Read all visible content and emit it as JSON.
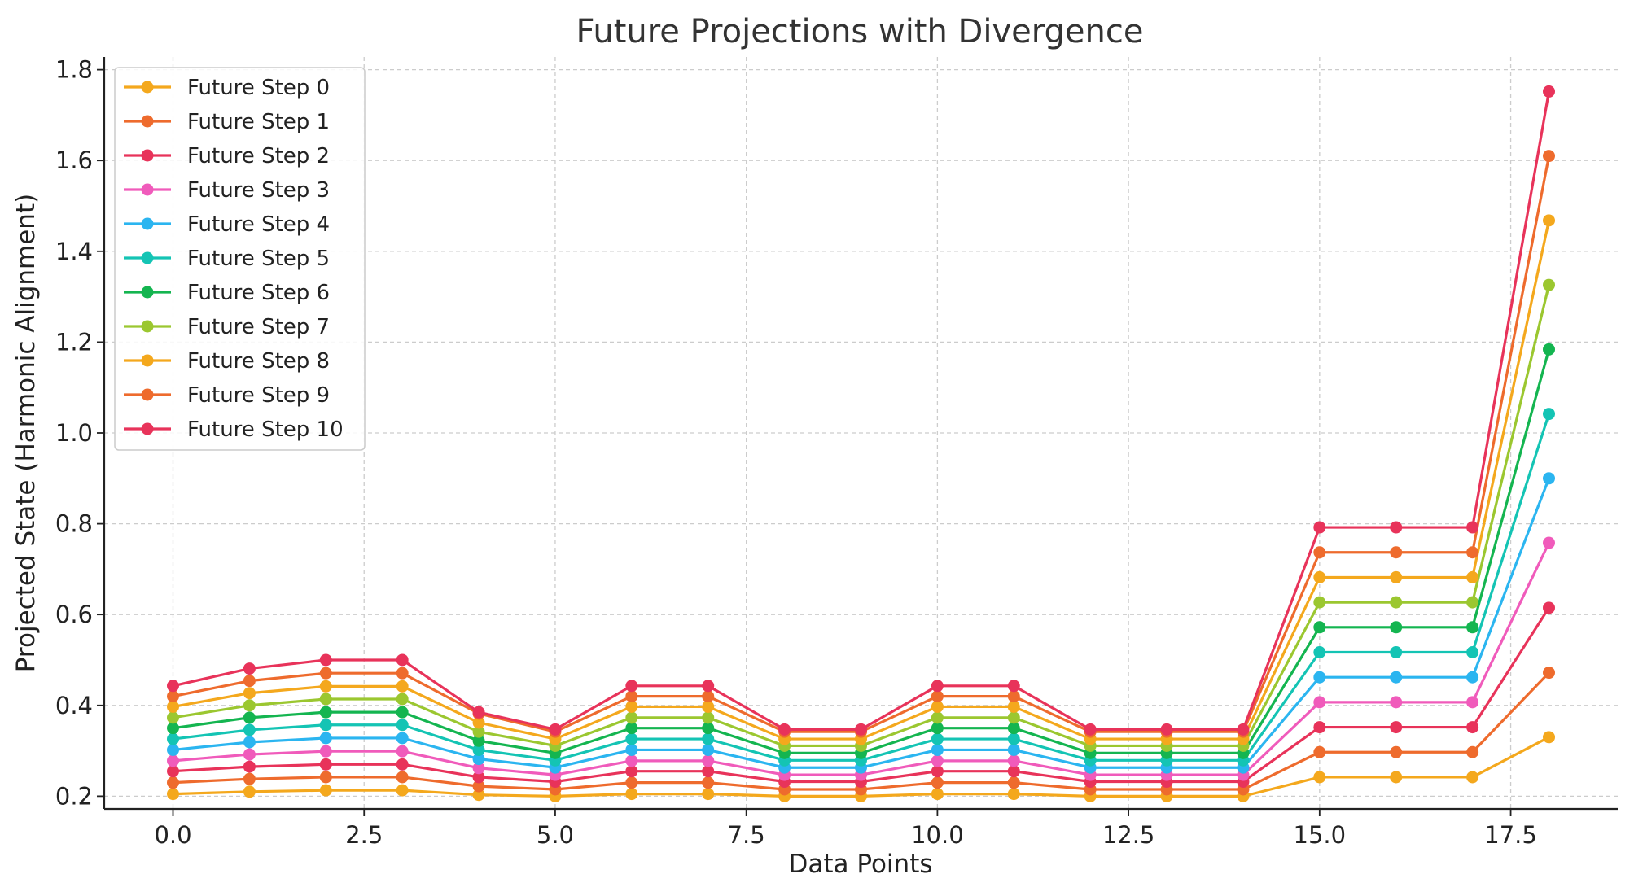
{
  "chart_data": {
    "type": "line",
    "title": "Future Projections with Divergence",
    "xlabel": "Data Points",
    "ylabel": "Projected State (Harmonic Alignment)",
    "xlim": [
      -0.9,
      18.9
    ],
    "ylim": [
      0.172,
      1.828
    ],
    "x_ticks": [
      0.0,
      2.5,
      5.0,
      7.5,
      10.0,
      12.5,
      15.0,
      17.5
    ],
    "x_tick_labels": [
      "0.0",
      "2.5",
      "5.0",
      "7.5",
      "10.0",
      "12.5",
      "15.0",
      "17.5"
    ],
    "y_ticks": [
      0.2,
      0.4,
      0.6,
      0.8,
      1.0,
      1.2,
      1.4,
      1.6,
      1.8
    ],
    "y_tick_labels": [
      "0.2",
      "0.4",
      "0.6",
      "0.8",
      "1.0",
      "1.2",
      "1.4",
      "1.6",
      "1.8"
    ],
    "grid": true,
    "legend_position": "top-left",
    "x": [
      0,
      1,
      2,
      3,
      4,
      5,
      6,
      7,
      8,
      9,
      10,
      11,
      12,
      13,
      14,
      15,
      16,
      17,
      18
    ],
    "series": [
      {
        "name": "Future Step 0",
        "color": "#f4a81d",
        "values": [
          0.205,
          0.21,
          0.213,
          0.213,
          0.203,
          0.2,
          0.205,
          0.205,
          0.2,
          0.2,
          0.205,
          0.205,
          0.2,
          0.2,
          0.2,
          0.242,
          0.242,
          0.242,
          0.33
        ]
      },
      {
        "name": "Future Step 1",
        "color": "#ee6b2d",
        "values": [
          0.23,
          0.238,
          0.242,
          0.242,
          0.222,
          0.215,
          0.23,
          0.23,
          0.215,
          0.215,
          0.23,
          0.23,
          0.215,
          0.215,
          0.215,
          0.297,
          0.297,
          0.297,
          0.472
        ]
      },
      {
        "name": "Future Step 2",
        "color": "#e8335a",
        "values": [
          0.255,
          0.265,
          0.27,
          0.27,
          0.242,
          0.232,
          0.255,
          0.255,
          0.232,
          0.232,
          0.255,
          0.255,
          0.232,
          0.232,
          0.232,
          0.352,
          0.352,
          0.352,
          0.615
        ]
      },
      {
        "name": "Future Step 3",
        "color": "#f05bbb",
        "values": [
          0.278,
          0.292,
          0.299,
          0.299,
          0.262,
          0.247,
          0.278,
          0.278,
          0.247,
          0.247,
          0.278,
          0.278,
          0.247,
          0.247,
          0.247,
          0.407,
          0.407,
          0.407,
          0.758
        ]
      },
      {
        "name": "Future Step 4",
        "color": "#2bb5f0",
        "values": [
          0.302,
          0.319,
          0.328,
          0.328,
          0.282,
          0.263,
          0.302,
          0.302,
          0.263,
          0.263,
          0.302,
          0.302,
          0.263,
          0.263,
          0.263,
          0.462,
          0.462,
          0.462,
          0.9
        ]
      },
      {
        "name": "Future Step 5",
        "color": "#14c4b4",
        "values": [
          0.326,
          0.346,
          0.357,
          0.357,
          0.302,
          0.279,
          0.326,
          0.326,
          0.279,
          0.279,
          0.326,
          0.326,
          0.279,
          0.279,
          0.279,
          0.517,
          0.517,
          0.517,
          1.042
        ]
      },
      {
        "name": "Future Step 6",
        "color": "#14b550",
        "values": [
          0.35,
          0.373,
          0.385,
          0.385,
          0.322,
          0.295,
          0.35,
          0.35,
          0.295,
          0.295,
          0.35,
          0.35,
          0.295,
          0.295,
          0.295,
          0.572,
          0.572,
          0.572,
          1.184
        ]
      },
      {
        "name": "Future Step 7",
        "color": "#9bc730",
        "values": [
          0.373,
          0.4,
          0.414,
          0.414,
          0.342,
          0.311,
          0.373,
          0.373,
          0.311,
          0.311,
          0.373,
          0.373,
          0.311,
          0.311,
          0.311,
          0.627,
          0.627,
          0.627,
          1.326
        ]
      },
      {
        "name": "Future Step 8",
        "color": "#f4a81d",
        "values": [
          0.397,
          0.427,
          0.442,
          0.442,
          0.362,
          0.326,
          0.397,
          0.397,
          0.326,
          0.326,
          0.397,
          0.397,
          0.326,
          0.326,
          0.326,
          0.682,
          0.682,
          0.682,
          1.468
        ]
      },
      {
        "name": "Future Step 9",
        "color": "#ee6b2d",
        "values": [
          0.42,
          0.454,
          0.471,
          0.471,
          0.382,
          0.342,
          0.42,
          0.42,
          0.342,
          0.342,
          0.42,
          0.42,
          0.342,
          0.342,
          0.342,
          0.737,
          0.737,
          0.737,
          1.61
        ]
      },
      {
        "name": "Future Step 10",
        "color": "#e8335a",
        "values": [
          0.443,
          0.481,
          0.5,
          0.5,
          0.385,
          0.347,
          0.443,
          0.443,
          0.347,
          0.347,
          0.443,
          0.443,
          0.347,
          0.347,
          0.347,
          0.792,
          0.792,
          0.792,
          1.752
        ]
      }
    ]
  }
}
